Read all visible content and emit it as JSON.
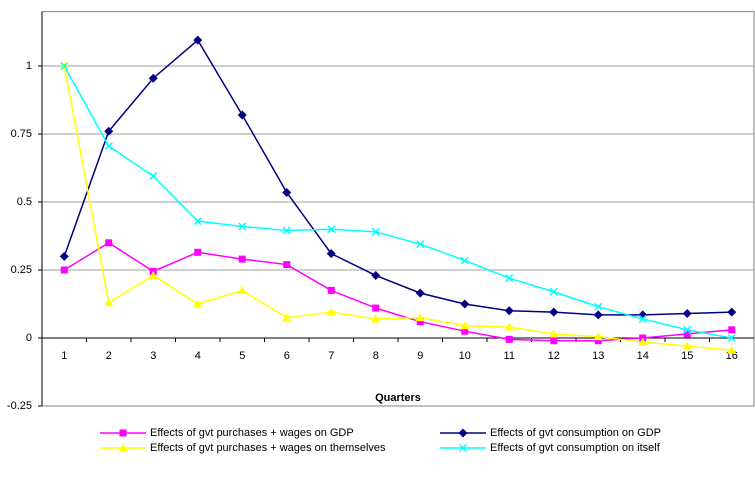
{
  "chart_data": {
    "type": "line",
    "x_label": "Quarters",
    "categories": [
      "1",
      "2",
      "3",
      "4",
      "5",
      "6",
      "7",
      "8",
      "9",
      "10",
      "11",
      "12",
      "13",
      "14",
      "15",
      "16"
    ],
    "series": [
      {
        "name": "Effects of gvt purchases + wages on GDP",
        "color": "#ff00ff",
        "marker": "square",
        "values": [
          0.25,
          0.35,
          0.245,
          0.315,
          0.29,
          0.27,
          0.175,
          0.11,
          0.06,
          0.025,
          -0.005,
          -0.01,
          -0.01,
          0.0,
          0.015,
          0.03
        ]
      },
      {
        "name": "Effects of gvt consumption on GDP",
        "color": "#000080",
        "marker": "diamond",
        "values": [
          0.3,
          0.76,
          0.955,
          1.095,
          0.82,
          0.535,
          0.31,
          0.23,
          0.165,
          0.125,
          0.1,
          0.095,
          0.085,
          0.085,
          0.09,
          0.095
        ]
      },
      {
        "name": "Effects of gvt purchases + wages on themselves",
        "color": "#ffff00",
        "marker": "triangle",
        "values": [
          1.0,
          0.13,
          0.23,
          0.125,
          0.175,
          0.075,
          0.095,
          0.07,
          0.075,
          0.045,
          0.04,
          0.015,
          0.005,
          -0.015,
          -0.03,
          -0.045
        ]
      },
      {
        "name": "Effects of gvt consumption on itself",
        "color": "#00ffff",
        "marker": "x",
        "values": [
          1.0,
          0.705,
          0.595,
          0.43,
          0.41,
          0.395,
          0.4,
          0.39,
          0.345,
          0.285,
          0.22,
          0.17,
          0.115,
          0.07,
          0.03,
          0.0
        ]
      }
    ],
    "ylim": [
      -0.25,
      1.2
    ],
    "yticks": [
      -0.25,
      0,
      0.25,
      0.5,
      0.75,
      1
    ],
    "grid": true,
    "legend": "bottom"
  }
}
